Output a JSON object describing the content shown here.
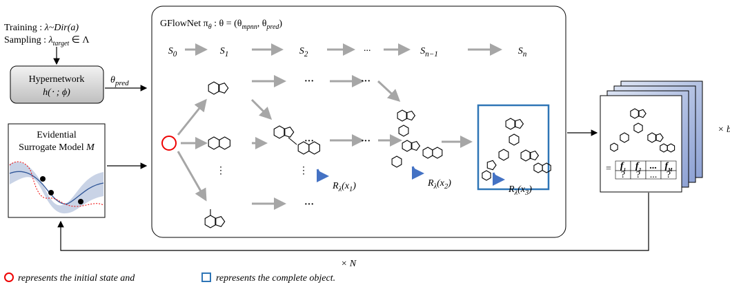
{
  "inputs": {
    "training": {
      "prefix": "Training : ",
      "expr": "λ~Dir(a)"
    },
    "sampling": {
      "prefix": "Sampling : ",
      "expr": "λ",
      "sub": "target",
      "suffix": " ∈ Λ"
    }
  },
  "hypernetwork": {
    "title": "Hypernetwork",
    "expr": "h(⋅ ; ϕ)"
  },
  "theta_pred": {
    "base": "θ",
    "sub": "pred"
  },
  "surrogate": {
    "line1": "Evidential",
    "line2": "Surrogate Model ",
    "var": "M"
  },
  "gflownet": {
    "title": "GFlowNet π",
    "title_sub": "θ",
    "title_rest": " : θ = (θ",
    "sub1": "mpnn",
    "comma": ", θ",
    "sub2": "pred",
    "close": ")"
  },
  "states": [
    {
      "base": "S",
      "sub": "0"
    },
    {
      "base": "S",
      "sub": "1"
    },
    {
      "base": "S",
      "sub": "2"
    },
    {
      "base": "···"
    },
    {
      "base": "S",
      "sub": "n−1"
    },
    {
      "base": "S",
      "sub": "n"
    }
  ],
  "ellipsis": "···",
  "vdots": "⋮",
  "rewards": [
    {
      "base": "R",
      "sub": "λ",
      "arg": "(x",
      "argsub": "1",
      "close": ")"
    },
    {
      "base": "R",
      "sub": "λ",
      "arg": "(x",
      "argsub": "2",
      "close": ")"
    },
    {
      "base": "R",
      "sub": "λ",
      "arg": "(x",
      "argsub": "3",
      "close": ")"
    }
  ],
  "output": {
    "eq": "=",
    "headers": [
      {
        "base": "f",
        "sub": "1"
      },
      {
        "base": "f",
        "sub": "2"
      },
      {
        "base": "..."
      },
      {
        "base": "f",
        "sub": "M"
      }
    ],
    "row": [
      "?",
      "?",
      "...",
      "?"
    ],
    "batch": "× b"
  },
  "loop": "× N",
  "legend": {
    "circle": "represents the initial state and ",
    "square": "represents the complete object."
  }
}
